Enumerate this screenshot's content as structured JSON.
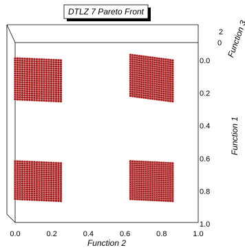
{
  "chart_data": {
    "type": "scatter",
    "title": "DTLZ 7 Pareto Front",
    "xlabel": "Function 2",
    "ylabel": "Function 1",
    "zlabel": "Function 3",
    "xlim": [
      0.0,
      1.0
    ],
    "ylim": [
      0.0,
      1.0
    ],
    "x_ticks": [
      "0.0",
      "0.2",
      "0.4",
      "0.6",
      "0.8",
      "1.0"
    ],
    "y_ticks": [
      "0.0",
      "0.2",
      "0.4",
      "0.6",
      "0.8",
      "1.0"
    ],
    "z_ticks": [
      "2",
      "0"
    ],
    "marker_color": "#a01818",
    "projection": "3d",
    "series": [
      {
        "x_range": [
          0.0,
          0.25
        ],
        "y_range": [
          0.0,
          0.25
        ],
        "z_range": [
          3.6,
          4.0
        ],
        "description_dims": "surface patch"
      },
      {
        "x_range": [
          0.63,
          0.86
        ],
        "y_range": [
          0.0,
          0.25
        ],
        "z_range": [
          2.7,
          3.7
        ],
        "description_dims": "surface patch"
      },
      {
        "x_range": [
          0.0,
          0.25
        ],
        "y_range": [
          0.63,
          0.86
        ],
        "z_range": [
          2.7,
          3.7
        ],
        "description_dims": "surface patch"
      },
      {
        "x_range": [
          0.63,
          0.86
        ],
        "y_range": [
          0.63,
          0.86
        ],
        "z_range": [
          2.0,
          2.7
        ],
        "description_dims": "surface patch"
      }
    ]
  }
}
